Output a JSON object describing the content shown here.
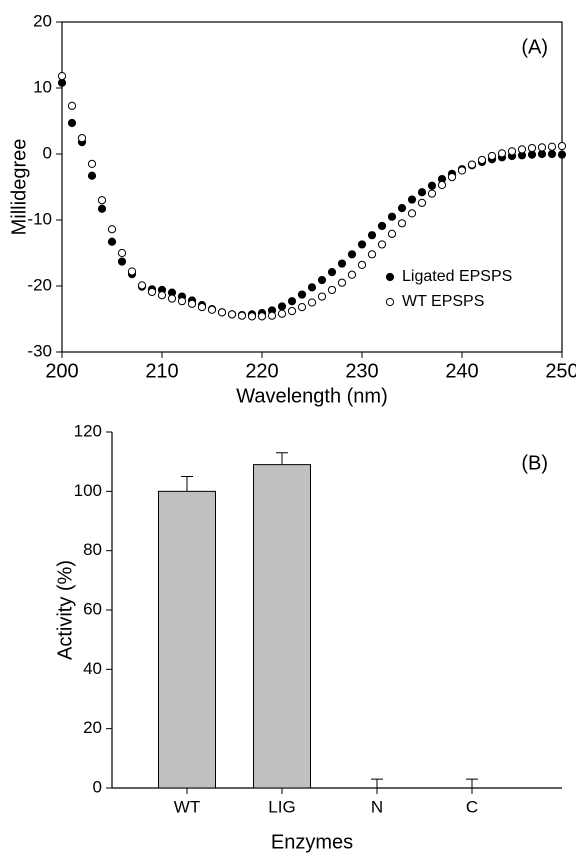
{
  "chart_data": [
    {
      "type": "scatter",
      "annotation": "(A)",
      "xlabel": "Wavelength (nm)",
      "ylabel": "Millidegree",
      "x": [
        200,
        201,
        202,
        203,
        204,
        205,
        206,
        207,
        208,
        209,
        210,
        211,
        212,
        213,
        214,
        215,
        216,
        217,
        218,
        219,
        220,
        221,
        222,
        223,
        224,
        225,
        226,
        227,
        228,
        229,
        230,
        231,
        232,
        233,
        234,
        235,
        236,
        237,
        238,
        239,
        240,
        241,
        242,
        243,
        244,
        245,
        246,
        247,
        248,
        249,
        250
      ],
      "series": [
        {
          "name": "Ligated EPSPS",
          "color": "#000000",
          "marker": "filled",
          "values": [
            10.8,
            4.7,
            1.8,
            -3.3,
            -8.3,
            -13.3,
            -16.3,
            -18.2,
            -20.1,
            -20.5,
            -20.6,
            -21.0,
            -21.6,
            -22.2,
            -22.9,
            -23.5,
            -24.0,
            -24.3,
            -24.4,
            -24.3,
            -24.1,
            -23.7,
            -23.1,
            -22.3,
            -21.3,
            -20.2,
            -19.1,
            -17.9,
            -16.6,
            -15.2,
            -13.7,
            -12.3,
            -10.9,
            -9.5,
            -8.2,
            -6.9,
            -5.8,
            -4.8,
            -3.8,
            -3.0,
            -2.3,
            -1.7,
            -1.2,
            -0.8,
            -0.5,
            -0.3,
            -0.2,
            -0.1,
            0.0,
            0.0,
            -0.1
          ]
        },
        {
          "name": "WT EPSPS",
          "color": "#000000",
          "marker": "open",
          "values": [
            11.8,
            7.3,
            2.4,
            -1.5,
            -7.0,
            -11.4,
            -15.0,
            -17.8,
            -19.9,
            -20.9,
            -21.4,
            -21.9,
            -22.3,
            -22.7,
            -23.2,
            -23.6,
            -24.0,
            -24.3,
            -24.5,
            -24.6,
            -24.6,
            -24.5,
            -24.2,
            -23.8,
            -23.2,
            -22.5,
            -21.6,
            -20.6,
            -19.5,
            -18.3,
            -16.8,
            -15.2,
            -13.7,
            -12.1,
            -10.5,
            -9.0,
            -7.4,
            -6.0,
            -4.7,
            -3.5,
            -2.5,
            -1.6,
            -0.9,
            -0.3,
            0.1,
            0.4,
            0.7,
            0.9,
            1.0,
            1.1,
            1.2
          ]
        }
      ],
      "xlim": [
        200,
        250
      ],
      "xticks": [
        200,
        210,
        220,
        230,
        240,
        250
      ],
      "ylim": [
        -30,
        20
      ],
      "yticks": [
        -30,
        -20,
        -10,
        0,
        10,
        20
      ],
      "legend": "right"
    },
    {
      "type": "bar",
      "annotation": "(B)",
      "xlabel": "Enzymes",
      "ylabel": "Activity (%)",
      "categories": [
        "WT",
        "LIG",
        "N",
        "C"
      ],
      "values": [
        100,
        109,
        0,
        0
      ],
      "errors": [
        5,
        4,
        3,
        3
      ],
      "color": "#c0c0c0",
      "ylim": [
        0,
        120
      ],
      "yticks": [
        0,
        20,
        40,
        60,
        80,
        100,
        120
      ]
    }
  ]
}
